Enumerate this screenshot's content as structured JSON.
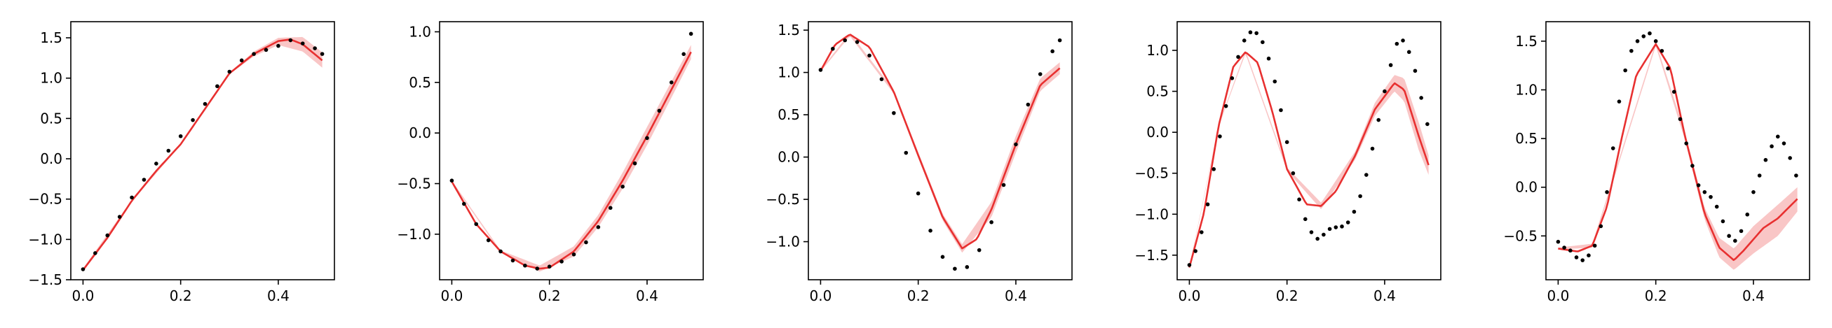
{
  "colors": {
    "mean_line": "#e83030",
    "band_fill": "#f28080",
    "band_opacity": 0.45,
    "observations": "#000000"
  },
  "chart_data": [
    {
      "type": "line",
      "xlim": [
        -0.025,
        0.515
      ],
      "ylim": [
        -1.5,
        1.7
      ],
      "xticks": [
        0.0,
        0.2,
        0.4
      ],
      "xtick_labels": [
        "0.0",
        "0.2",
        "0.4"
      ],
      "yticks": [
        -1.5,
        -1.0,
        -0.5,
        0.0,
        0.5,
        1.0,
        1.5
      ],
      "ytick_labels": [
        "−1.5",
        "−1.0",
        "−0.5",
        "0.0",
        "0.5",
        "1.0",
        "1.5"
      ],
      "grid": false,
      "mean": {
        "x": [
          0.0,
          0.05,
          0.1,
          0.15,
          0.2,
          0.25,
          0.3,
          0.35,
          0.4,
          0.425,
          0.45,
          0.49
        ],
        "y": [
          -1.38,
          -0.98,
          -0.52,
          -0.15,
          0.18,
          0.62,
          1.06,
          1.3,
          1.46,
          1.48,
          1.42,
          1.22
        ]
      },
      "band": {
        "x": [
          0.0,
          0.1,
          0.2,
          0.3,
          0.35,
          0.4,
          0.45,
          0.49
        ],
        "lower": [
          -1.4,
          -0.53,
          0.17,
          1.05,
          1.27,
          1.41,
          1.33,
          1.13
        ],
        "upper": [
          -1.36,
          -0.51,
          0.19,
          1.07,
          1.33,
          1.5,
          1.51,
          1.32
        ]
      },
      "observations": {
        "x": [
          0.0,
          0.025,
          0.05,
          0.075,
          0.1,
          0.125,
          0.15,
          0.175,
          0.2,
          0.225,
          0.25,
          0.275,
          0.3,
          0.325,
          0.35,
          0.375,
          0.4,
          0.425,
          0.45,
          0.475,
          0.49
        ],
        "y": [
          -1.37,
          -1.17,
          -0.95,
          -0.72,
          -0.48,
          -0.26,
          -0.06,
          0.1,
          0.28,
          0.48,
          0.68,
          0.9,
          1.08,
          1.22,
          1.3,
          1.35,
          1.4,
          1.47,
          1.43,
          1.37,
          1.3
        ]
      }
    },
    {
      "type": "line",
      "xlim": [
        -0.025,
        0.515
      ],
      "ylim": [
        -1.45,
        1.1
      ],
      "xticks": [
        0.0,
        0.2,
        0.4
      ],
      "xtick_labels": [
        "0.0",
        "0.2",
        "0.4"
      ],
      "yticks": [
        -1.0,
        -0.5,
        0.0,
        0.5,
        1.0
      ],
      "ytick_labels": [
        "−1.0",
        "−0.5",
        "0.0",
        "0.5",
        "1.0"
      ],
      "grid": false,
      "mean": {
        "x": [
          0.0,
          0.05,
          0.1,
          0.15,
          0.18,
          0.2,
          0.25,
          0.3,
          0.35,
          0.4,
          0.45,
          0.49
        ],
        "y": [
          -0.48,
          -0.9,
          -1.17,
          -1.31,
          -1.34,
          -1.33,
          -1.17,
          -0.87,
          -0.47,
          -0.03,
          0.43,
          0.8
        ]
      },
      "band": {
        "x": [
          0.0,
          0.1,
          0.18,
          0.25,
          0.3,
          0.35,
          0.4,
          0.45,
          0.49
        ],
        "lower": [
          -0.49,
          -1.18,
          -1.37,
          -1.22,
          -0.93,
          -0.55,
          -0.12,
          0.35,
          0.73
        ],
        "upper": [
          -0.47,
          -1.16,
          -1.31,
          -1.12,
          -0.81,
          -0.39,
          0.06,
          0.51,
          0.87
        ]
      },
      "observations": {
        "x": [
          0.0,
          0.025,
          0.05,
          0.075,
          0.1,
          0.125,
          0.15,
          0.175,
          0.2,
          0.225,
          0.25,
          0.275,
          0.3,
          0.325,
          0.35,
          0.375,
          0.4,
          0.425,
          0.45,
          0.475,
          0.49
        ],
        "y": [
          -0.47,
          -0.7,
          -0.9,
          -1.06,
          -1.17,
          -1.26,
          -1.31,
          -1.34,
          -1.32,
          -1.27,
          -1.2,
          -1.08,
          -0.93,
          -0.74,
          -0.53,
          -0.3,
          -0.05,
          0.22,
          0.5,
          0.78,
          0.98
        ]
      }
    },
    {
      "type": "line",
      "xlim": [
        -0.025,
        0.515
      ],
      "ylim": [
        -1.45,
        1.6
      ],
      "xticks": [
        0.0,
        0.2,
        0.4
      ],
      "xtick_labels": [
        "0.0",
        "0.2",
        "0.4"
      ],
      "yticks": [
        -1.0,
        -0.5,
        0.0,
        0.5,
        1.0,
        1.5
      ],
      "ytick_labels": [
        "−1.0",
        "−0.5",
        "0.0",
        "0.5",
        "1.0",
        "1.5"
      ],
      "grid": false,
      "mean": {
        "x": [
          0.0,
          0.03,
          0.06,
          0.1,
          0.15,
          0.2,
          0.25,
          0.29,
          0.32,
          0.35,
          0.4,
          0.45,
          0.49
        ],
        "y": [
          1.02,
          1.33,
          1.45,
          1.3,
          0.77,
          0.02,
          -0.71,
          -1.08,
          -0.97,
          -0.62,
          0.15,
          0.85,
          1.05
        ]
      },
      "band": {
        "x": [
          0.0,
          0.06,
          0.15,
          0.25,
          0.29,
          0.35,
          0.4,
          0.45,
          0.49
        ],
        "lower": [
          1.01,
          1.43,
          0.75,
          -0.75,
          -1.13,
          -0.71,
          0.05,
          0.78,
          0.98
        ],
        "upper": [
          1.03,
          1.47,
          0.79,
          -0.67,
          -1.03,
          -0.53,
          0.25,
          0.93,
          1.12
        ]
      },
      "observations": {
        "x": [
          0.0,
          0.025,
          0.05,
          0.075,
          0.1,
          0.125,
          0.15,
          0.175,
          0.2,
          0.225,
          0.25,
          0.275,
          0.3,
          0.325,
          0.35,
          0.375,
          0.4,
          0.425,
          0.45,
          0.475,
          0.49
        ],
        "y": [
          1.03,
          1.28,
          1.38,
          1.36,
          1.2,
          0.92,
          0.52,
          0.05,
          -0.43,
          -0.87,
          -1.18,
          -1.32,
          -1.3,
          -1.1,
          -0.77,
          -0.33,
          0.15,
          0.62,
          0.98,
          1.25,
          1.38
        ]
      }
    },
    {
      "type": "line",
      "xlim": [
        -0.025,
        0.515
      ],
      "ylim": [
        -1.8,
        1.35
      ],
      "xticks": [
        0.0,
        0.2,
        0.4
      ],
      "xtick_labels": [
        "0.0",
        "0.2",
        "0.4"
      ],
      "yticks": [
        -1.5,
        -1.0,
        -0.5,
        0.0,
        0.5,
        1.0
      ],
      "ytick_labels": [
        "−1.5",
        "−1.0",
        "−0.5",
        "0.0",
        "0.5",
        "1.0"
      ],
      "grid": false,
      "mean": {
        "x": [
          0.0,
          0.03,
          0.06,
          0.09,
          0.115,
          0.14,
          0.17,
          0.2,
          0.24,
          0.27,
          0.3,
          0.34,
          0.38,
          0.42,
          0.44,
          0.47,
          0.49
        ],
        "y": [
          -1.65,
          -0.98,
          0.08,
          0.8,
          0.98,
          0.85,
          0.25,
          -0.45,
          -0.88,
          -0.9,
          -0.72,
          -0.28,
          0.28,
          0.6,
          0.52,
          -0.05,
          -0.4
        ]
      },
      "band": {
        "x": [
          0.0,
          0.06,
          0.115,
          0.2,
          0.27,
          0.34,
          0.38,
          0.42,
          0.44,
          0.47,
          0.49
        ],
        "lower": [
          -1.66,
          0.07,
          0.96,
          -0.47,
          -0.94,
          -0.33,
          0.2,
          0.5,
          0.38,
          -0.22,
          -0.52
        ],
        "upper": [
          -1.64,
          0.09,
          1.0,
          -0.43,
          -0.86,
          -0.23,
          0.36,
          0.7,
          0.66,
          0.12,
          -0.28
        ]
      },
      "observations": {
        "x": [
          0.0,
          0.0125,
          0.025,
          0.0375,
          0.05,
          0.0625,
          0.075,
          0.0875,
          0.1,
          0.1125,
          0.125,
          0.1375,
          0.15,
          0.1625,
          0.175,
          0.1875,
          0.2,
          0.2125,
          0.225,
          0.2375,
          0.25,
          0.2625,
          0.275,
          0.2875,
          0.3,
          0.3125,
          0.325,
          0.3375,
          0.35,
          0.3625,
          0.375,
          0.3875,
          0.4,
          0.4125,
          0.425,
          0.4375,
          0.45,
          0.4625,
          0.475,
          0.4875
        ],
        "y": [
          -1.62,
          -1.45,
          -1.22,
          -0.88,
          -0.45,
          -0.05,
          0.32,
          0.66,
          0.92,
          1.12,
          1.22,
          1.21,
          1.1,
          0.9,
          0.62,
          0.27,
          -0.12,
          -0.5,
          -0.82,
          -1.06,
          -1.22,
          -1.3,
          -1.25,
          -1.18,
          -1.16,
          -1.15,
          -1.1,
          -0.97,
          -0.78,
          -0.52,
          -0.2,
          0.15,
          0.5,
          0.82,
          1.08,
          1.12,
          0.98,
          0.75,
          0.42,
          0.1
        ]
      }
    },
    {
      "type": "line",
      "xlim": [
        -0.025,
        0.515
      ],
      "ylim": [
        -0.95,
        1.7
      ],
      "xticks": [
        0.0,
        0.2,
        0.4
      ],
      "xtick_labels": [
        "0.0",
        "0.2",
        "0.4"
      ],
      "yticks": [
        -0.5,
        0.0,
        0.5,
        1.0,
        1.5
      ],
      "ytick_labels": [
        "−0.5",
        "0.0",
        "0.5",
        "1.0",
        "1.5"
      ],
      "grid": false,
      "mean": {
        "x": [
          0.0,
          0.04,
          0.07,
          0.1,
          0.13,
          0.16,
          0.2,
          0.23,
          0.26,
          0.3,
          0.33,
          0.36,
          0.38,
          0.42,
          0.45,
          0.49
        ],
        "y": [
          -0.63,
          -0.66,
          -0.6,
          -0.2,
          0.5,
          1.15,
          1.47,
          1.22,
          0.52,
          -0.27,
          -0.62,
          -0.75,
          -0.65,
          -0.42,
          -0.32,
          -0.12
        ]
      },
      "band": {
        "x": [
          0.0,
          0.07,
          0.2,
          0.26,
          0.3,
          0.33,
          0.36,
          0.4,
          0.45,
          0.49
        ],
        "lower": [
          -0.64,
          -0.62,
          1.45,
          0.48,
          -0.33,
          -0.72,
          -0.85,
          -0.68,
          -0.5,
          -0.25
        ],
        "upper": [
          -0.62,
          -0.58,
          1.49,
          0.56,
          -0.21,
          -0.52,
          -0.63,
          -0.4,
          -0.18,
          0.0
        ]
      },
      "observations": {
        "x": [
          0.0,
          0.0125,
          0.025,
          0.0375,
          0.05,
          0.0625,
          0.075,
          0.0875,
          0.1,
          0.1125,
          0.125,
          0.1375,
          0.15,
          0.1625,
          0.175,
          0.1875,
          0.2,
          0.2125,
          0.225,
          0.2375,
          0.25,
          0.2625,
          0.275,
          0.2875,
          0.3,
          0.3125,
          0.325,
          0.3375,
          0.35,
          0.3625,
          0.375,
          0.3875,
          0.4,
          0.4125,
          0.425,
          0.4375,
          0.45,
          0.4625,
          0.475,
          0.4875
        ],
        "y": [
          -0.56,
          -0.62,
          -0.65,
          -0.72,
          -0.75,
          -0.7,
          -0.6,
          -0.4,
          -0.05,
          0.4,
          0.88,
          1.2,
          1.4,
          1.5,
          1.55,
          1.58,
          1.5,
          1.4,
          1.22,
          0.98,
          0.7,
          0.45,
          0.22,
          0.02,
          -0.05,
          -0.1,
          -0.2,
          -0.35,
          -0.5,
          -0.55,
          -0.45,
          -0.28,
          -0.05,
          0.12,
          0.28,
          0.42,
          0.52,
          0.45,
          0.3,
          0.12
        ]
      }
    }
  ]
}
